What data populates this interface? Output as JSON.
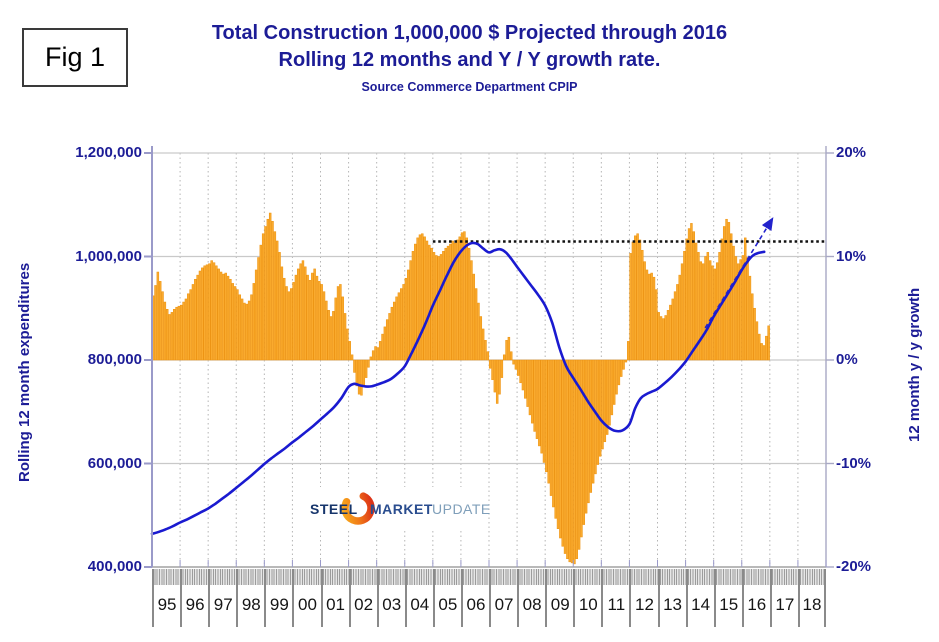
{
  "figure": {
    "label": "Fig 1"
  },
  "header": {
    "title_line1": "Total Construction 1,000,000 $ Projected through 2016",
    "title_line2": "Rolling 12 months and Y / Y growth rate.",
    "source": "Source Commerce Department CPIP"
  },
  "logo": {
    "word1": "STEEL",
    "word2": "MARKET",
    "word3": "UPDATE"
  },
  "left_axis": {
    "title": "Rolling 12 month expenditures",
    "tick_labels": [
      "1,200,000",
      "1,000,000",
      "800,000",
      "600,000",
      "400,000"
    ],
    "tick_values": [
      1200000,
      1000000,
      800000,
      600000,
      400000
    ],
    "min": 400000,
    "max": 1200000
  },
  "right_axis": {
    "title": "12 month y / y growth",
    "tick_labels": [
      "20%",
      "10%",
      "0%",
      "-10%",
      "-20%"
    ],
    "tick_values": [
      20,
      10,
      0,
      -10,
      -20
    ],
    "min": -20,
    "max": 20
  },
  "x_axis": {
    "years": [
      "95",
      "96",
      "97",
      "98",
      "99",
      "00",
      "01",
      "02",
      "03",
      "04",
      "05",
      "06",
      "07",
      "08",
      "09",
      "10",
      "11",
      "12",
      "13",
      "14",
      "15",
      "16",
      "17",
      "18"
    ]
  },
  "colors": {
    "title_navy": "#1c1c96",
    "bar_fill": "#FAAB2E",
    "bar_edge": "#ED9413",
    "line_blue": "#1a1ad0",
    "projection_blue": "#2222cc",
    "reference_black": "#111111",
    "grid_gray": "#c9c9c9",
    "axis_lavender": "#9a9ac9"
  },
  "chart_data": {
    "type": "combo (monthly bars + line)",
    "x_range_years": [
      1995,
      2019
    ],
    "grid": "horizontal solid every 200,000 / 10%, vertical dotted every year",
    "bar_series": {
      "name": "12 month y / y growth",
      "axis": "right",
      "unit": "%",
      "frequency": "monthly",
      "values_by_year": {
        "1995": [
          6.2,
          7.2,
          8.5,
          7.6,
          6.6,
          5.6,
          4.9,
          4.4,
          4.6,
          4.9,
          5.1,
          5.2
        ],
        "1996": [
          5.3,
          5.6,
          5.9,
          6.4,
          6.8,
          7.3,
          7.8,
          8.2,
          8.6,
          8.9,
          9.1,
          9.2
        ],
        "1997": [
          9.3,
          9.6,
          9.4,
          9.1,
          8.8,
          8.5,
          8.3,
          8.4,
          8.1,
          7.8,
          7.4,
          7.1
        ],
        "1998": [
          6.8,
          6.3,
          5.9,
          5.5,
          5.4,
          5.7,
          6.3,
          7.4,
          8.7,
          9.9,
          11.1,
          12.2
        ],
        "1999": [
          12.9,
          13.6,
          14.2,
          13.4,
          12.4,
          11.5,
          10.4,
          9.0,
          7.9,
          7.1,
          6.6,
          6.9
        ],
        "2000": [
          7.5,
          8.2,
          8.8,
          9.3,
          9.6,
          9.0,
          8.2,
          7.7,
          8.4,
          8.8,
          8.1,
          7.6
        ],
        "2001": [
          7.3,
          6.6,
          5.7,
          4.8,
          4.2,
          4.7,
          6.0,
          7.1,
          7.3,
          6.1,
          4.5,
          3.0
        ],
        "2002": [
          1.8,
          0.5,
          -1.2,
          -2.5,
          -3.3,
          -3.4,
          -2.6,
          -1.7,
          -0.7,
          0.3,
          0.9,
          1.3
        ],
        "2003": [
          1.2,
          1.8,
          2.5,
          3.2,
          3.9,
          4.5,
          5.1,
          5.6,
          6.1,
          6.5,
          6.9,
          7.3
        ],
        "2004": [
          7.9,
          8.7,
          9.6,
          10.5,
          11.2,
          11.8,
          12.1,
          12.2,
          11.9,
          11.5,
          11.1,
          10.8
        ],
        "2005": [
          10.4,
          10.1,
          10.0,
          10.2,
          10.5,
          10.8,
          11.0,
          11.2,
          11.5,
          11.3,
          11.6,
          11.9
        ],
        "2006": [
          12.3,
          12.4,
          11.8,
          10.8,
          9.6,
          8.3,
          6.9,
          5.5,
          4.2,
          3.0,
          1.9,
          0.8
        ],
        "2007": [
          -0.8,
          -1.9,
          -3.1,
          -4.2,
          -3.3,
          -1.7,
          0.5,
          1.9,
          2.2,
          0.8,
          -0.4,
          -0.9
        ],
        "2008": [
          -1.5,
          -2.2,
          -2.9,
          -3.7,
          -4.5,
          -5.3,
          -6.1,
          -6.9,
          -7.6,
          -8.3,
          -9.0,
          -9.9
        ],
        "2009": [
          -10.8,
          -11.9,
          -13.1,
          -14.2,
          -15.3,
          -16.3,
          -17.2,
          -18.0,
          -18.7,
          -19.2,
          -19.5,
          -19.6
        ],
        "2010": [
          -19.7,
          -19.2,
          -18.3,
          -17.1,
          -15.9,
          -14.8,
          -13.8,
          -12.8,
          -11.9,
          -11.0,
          -10.1,
          -9.3
        ],
        "2011": [
          -8.6,
          -7.9,
          -7.2,
          -6.3,
          -5.3,
          -4.3,
          -3.3,
          -2.4,
          -1.6,
          -0.9,
          -0.2,
          1.8
        ],
        "2012": [
          10.3,
          11.4,
          12.0,
          12.2,
          11.6,
          10.6,
          9.5,
          8.7,
          8.3,
          8.4,
          8.0,
          6.8
        ],
        "2013": [
          4.6,
          4.2,
          4.0,
          4.3,
          4.8,
          5.3,
          5.9,
          6.6,
          7.3,
          8.2,
          9.3,
          10.5
        ],
        "2014": [
          11.7,
          12.7,
          13.2,
          12.4,
          11.3,
          10.4,
          9.5,
          9.3,
          10.0,
          10.4,
          9.6,
          9.1
        ],
        "2015": [
          8.8,
          9.4,
          10.4,
          11.7,
          12.9,
          13.6,
          13.3,
          12.2,
          11.0,
          10.0,
          9.3,
          9.7
        ],
        "2016": [
          10.1,
          11.8,
          9.9,
          8.1,
          6.4,
          5.0,
          3.7,
          2.5,
          1.6,
          1.4,
          2.3,
          3.3
        ]
      }
    },
    "line_series": {
      "name": "Rolling 12 month expenditures",
      "axis": "left",
      "unit": "1,000,000 $",
      "points": [
        [
          1995.0,
          464000
        ],
        [
          1995.25,
          468000
        ],
        [
          1995.5,
          473000
        ],
        [
          1995.75,
          479000
        ],
        [
          1996.0,
          486000
        ],
        [
          1996.25,
          492000
        ],
        [
          1996.5,
          499000
        ],
        [
          1996.75,
          506000
        ],
        [
          1997.0,
          513000
        ],
        [
          1997.25,
          522000
        ],
        [
          1997.5,
          532000
        ],
        [
          1997.75,
          542000
        ],
        [
          1998.0,
          553000
        ],
        [
          1998.25,
          564000
        ],
        [
          1998.5,
          575000
        ],
        [
          1998.75,
          587000
        ],
        [
          1999.0,
          599000
        ],
        [
          1999.25,
          610000
        ],
        [
          1999.5,
          620000
        ],
        [
          1999.75,
          630000
        ],
        [
          2000.0,
          641000
        ],
        [
          2000.25,
          651000
        ],
        [
          2000.5,
          662000
        ],
        [
          2000.75,
          673000
        ],
        [
          2001.0,
          685000
        ],
        [
          2001.25,
          697000
        ],
        [
          2001.5,
          710000
        ],
        [
          2001.75,
          727000
        ],
        [
          2002.0,
          748000
        ],
        [
          2002.2,
          754000
        ],
        [
          2002.4,
          751000
        ],
        [
          2002.6,
          749000
        ],
        [
          2002.8,
          749000
        ],
        [
          2003.0,
          752000
        ],
        [
          2003.25,
          757000
        ],
        [
          2003.5,
          763000
        ],
        [
          2003.75,
          774000
        ],
        [
          2004.0,
          788000
        ],
        [
          2004.25,
          814000
        ],
        [
          2004.5,
          842000
        ],
        [
          2004.75,
          872000
        ],
        [
          2005.0,
          905000
        ],
        [
          2005.25,
          934000
        ],
        [
          2005.5,
          963000
        ],
        [
          2005.75,
          990000
        ],
        [
          2006.0,
          1010000
        ],
        [
          2006.2,
          1021000
        ],
        [
          2006.4,
          1026000
        ],
        [
          2006.6,
          1024000
        ],
        [
          2006.8,
          1015000
        ],
        [
          2007.0,
          1008000
        ],
        [
          2007.2,
          1012000
        ],
        [
          2007.4,
          1014000
        ],
        [
          2007.6,
          1008000
        ],
        [
          2007.8,
          995000
        ],
        [
          2008.0,
          980000
        ],
        [
          2008.25,
          962000
        ],
        [
          2008.5,
          944000
        ],
        [
          2008.75,
          926000
        ],
        [
          2009.0,
          905000
        ],
        [
          2009.25,
          872000
        ],
        [
          2009.5,
          825000
        ],
        [
          2009.75,
          788000
        ],
        [
          2010.0,
          765000
        ],
        [
          2010.25,
          744000
        ],
        [
          2010.5,
          722000
        ],
        [
          2010.75,
          702000
        ],
        [
          2011.0,
          683000
        ],
        [
          2011.25,
          670000
        ],
        [
          2011.5,
          663000
        ],
        [
          2011.75,
          664000
        ],
        [
          2012.0,
          676000
        ],
        [
          2012.2,
          706000
        ],
        [
          2012.4,
          726000
        ],
        [
          2012.6,
          734000
        ],
        [
          2012.8,
          739000
        ],
        [
          2013.0,
          744000
        ],
        [
          2013.25,
          755000
        ],
        [
          2013.5,
          767000
        ],
        [
          2013.75,
          781000
        ],
        [
          2014.0,
          797000
        ],
        [
          2014.25,
          817000
        ],
        [
          2014.5,
          837000
        ],
        [
          2014.75,
          858000
        ],
        [
          2015.0,
          884000
        ],
        [
          2015.25,
          906000
        ],
        [
          2015.5,
          928000
        ],
        [
          2015.75,
          950000
        ],
        [
          2016.0,
          974000
        ],
        [
          2016.2,
          990000
        ],
        [
          2016.4,
          1002000
        ],
        [
          2016.6,
          1007000
        ],
        [
          2016.8,
          1009000
        ]
      ]
    },
    "reference_line": {
      "description": "dotted black horizontal line at prior peak level",
      "value_left_axis": 1029000,
      "x_start": 2005.0,
      "x_end": 2019.0
    },
    "projection": {
      "description": "dashed blue arrow projecting growth through 2016+",
      "points": [
        [
          2014.7,
          862000
        ],
        [
          2017.08,
          1072000
        ]
      ]
    }
  }
}
